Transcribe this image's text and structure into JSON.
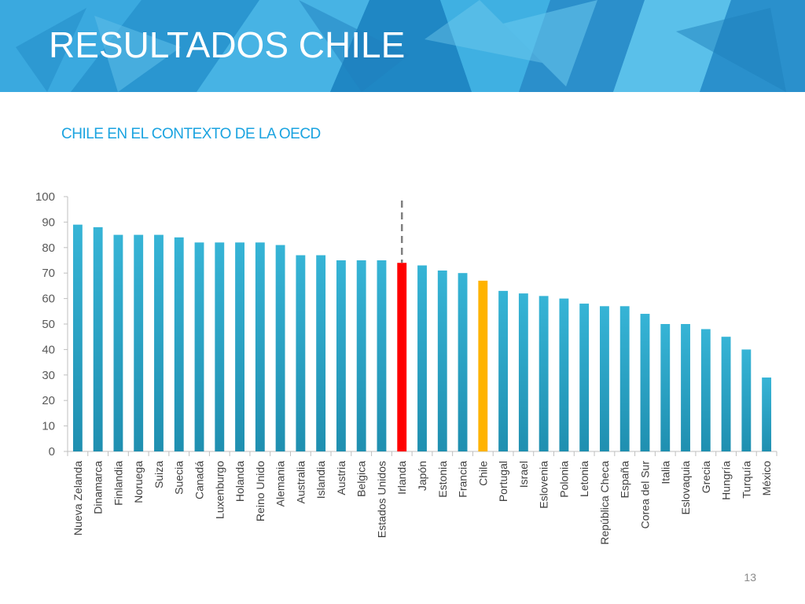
{
  "slide": {
    "title": "RESULTADOS CHILE",
    "subtitle": "CHILE EN EL CONTEXTO DE LA OECD",
    "page_number": "13"
  },
  "colors": {
    "bar": "#30aed0",
    "bar_dark": "#1f8fb0",
    "irlanda": "#ff0000",
    "chile": "#ffb300",
    "subtitle": "#1aa3e0"
  },
  "chart_data": {
    "type": "bar",
    "categories": [
      "Nueva Zelanda",
      "Dinamarca",
      "Finlandia",
      "Noruega",
      "Suiza",
      "Suecia",
      "Canadá",
      "Luxenburgo",
      "Holanda",
      "Reino Unido",
      "Alemania",
      "Australia",
      "Islandia",
      "Austria",
      "Belgica",
      "Estados Unidos",
      "Irlanda",
      "Japón",
      "Estonia",
      "Francia",
      "Chile",
      "Portugal",
      "Israel",
      "Eslovenia",
      "Polonia",
      "Letonia",
      "República Checa",
      "España",
      "Corea del Sur",
      "Italia",
      "Eslovaquia",
      "Grecia",
      "Hungría",
      "Turquía",
      "México"
    ],
    "values": [
      89,
      88,
      85,
      85,
      85,
      84,
      82,
      82,
      82,
      82,
      81,
      77,
      77,
      75,
      75,
      75,
      74,
      73,
      71,
      70,
      67,
      63,
      62,
      61,
      60,
      58,
      57,
      57,
      54,
      50,
      50,
      48,
      45,
      40,
      29
    ],
    "highlights": {
      "Irlanda": "irlanda",
      "Chile": "chile"
    },
    "reference_line_category": "Irlanda",
    "ylim": [
      0,
      100
    ],
    "yticks": [
      "0",
      "10",
      "20",
      "30",
      "40",
      "50",
      "60",
      "70",
      "80",
      "90",
      "100"
    ],
    "grid": false,
    "legend": "none"
  }
}
